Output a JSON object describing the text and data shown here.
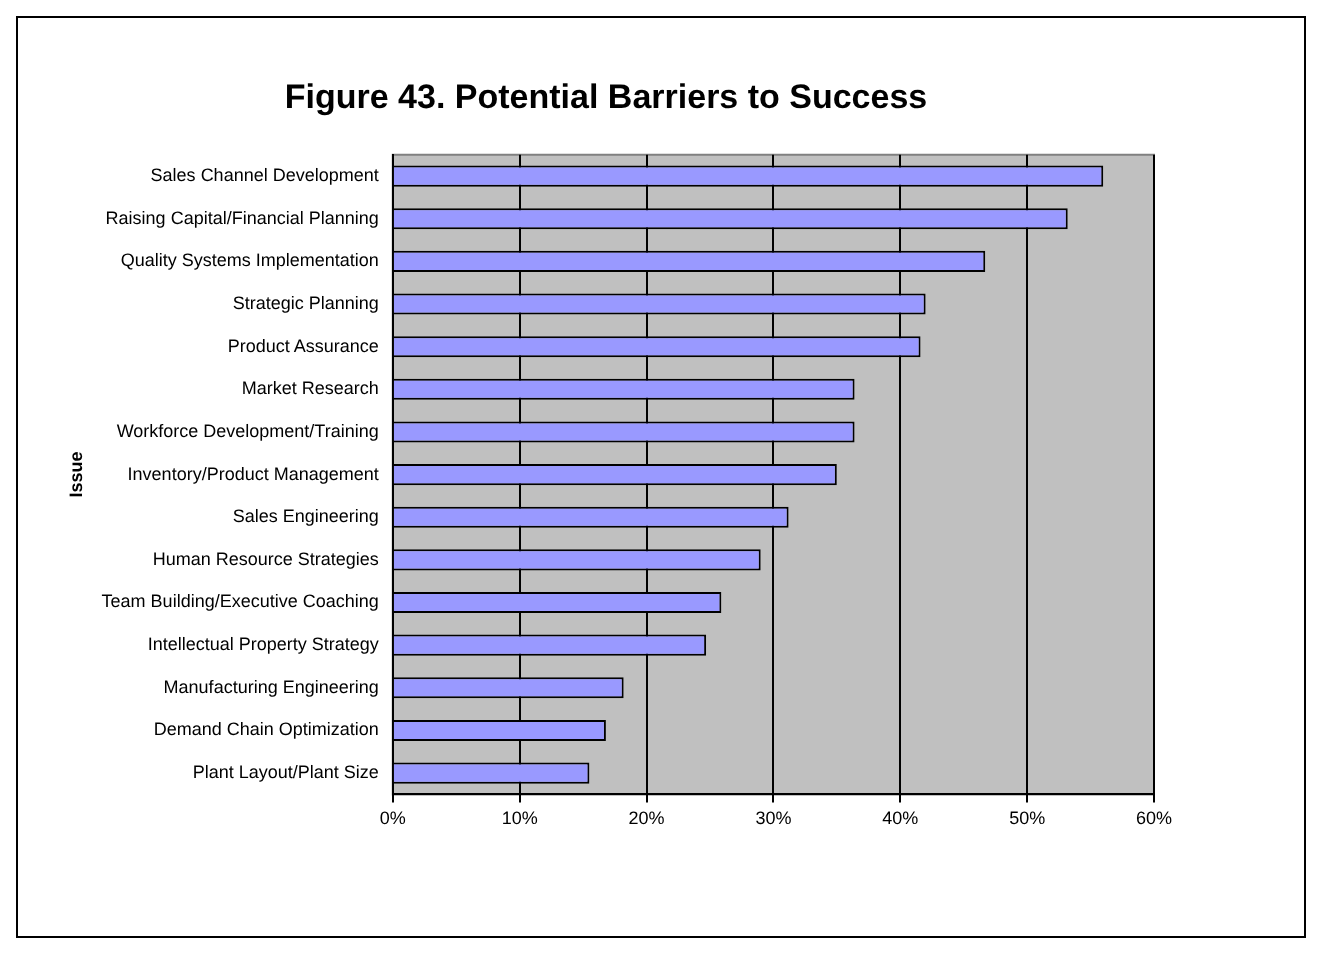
{
  "chart_data": {
    "type": "bar",
    "orientation": "horizontal",
    "title": "Figure 43. Potential Barriers to Success",
    "ylabel": "Issue",
    "categories": [
      "Sales Channel Development",
      "Raising Capital/Financial Planning",
      "Quality Systems Implementation",
      "Strategic Planning",
      "Product Assurance",
      "Market Research",
      "Workforce Development/Training",
      "Inventory/Product Management",
      "Sales Engineering",
      "Human Resource Strategies",
      "Team Building/Executive Coaching",
      "Intellectual Property Strategy",
      "Manufacturing Engineering",
      "Demand Chain Optimization",
      "Plant Layout/Plant Size"
    ],
    "values": [
      56,
      53.2,
      46.7,
      42,
      41.6,
      36.4,
      36.4,
      35,
      31.2,
      29,
      25.9,
      24.7,
      18.2,
      16.8,
      15.5
    ],
    "color": "#9999ff",
    "xlim": [
      0,
      60
    ],
    "xticks": [
      {
        "value": 0,
        "label": "0%"
      },
      {
        "value": 10,
        "label": "10%"
      },
      {
        "value": 20,
        "label": "20%"
      },
      {
        "value": 30,
        "label": "30%"
      },
      {
        "value": 40,
        "label": "40%"
      },
      {
        "value": 50,
        "label": "50%"
      },
      {
        "value": 60,
        "label": "60%"
      }
    ],
    "grid": "x",
    "legend": false
  }
}
